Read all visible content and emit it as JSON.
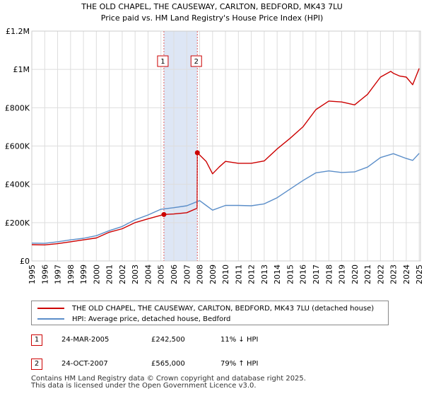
{
  "chart_data": {
    "type": "line",
    "title": "THE OLD CHAPEL, THE CAUSEWAY, CARLTON, BEDFORD, MK43 7LU",
    "subtitle": "Price paid vs. HM Land Registry's House Price Index (HPI)",
    "x_ticks": [
      "1995",
      "1996",
      "1997",
      "1998",
      "1999",
      "2000",
      "2001",
      "2002",
      "2003",
      "2004",
      "2005",
      "2006",
      "2007",
      "2008",
      "2009",
      "2010",
      "2011",
      "2012",
      "2013",
      "2014",
      "2015",
      "2016",
      "2017",
      "2018",
      "2019",
      "2020",
      "2021",
      "2022",
      "2023",
      "2024",
      "2025"
    ],
    "y_ticks": [
      "£0",
      "£200K",
      "£400K",
      "£600K",
      "£800K",
      "£1M",
      "£1.2M"
    ],
    "xlim": [
      1995,
      2025.1
    ],
    "ylim": [
      0,
      1200000
    ],
    "grid": true,
    "series": [
      {
        "name": "THE OLD CHAPEL, THE CAUSEWAY, CARLTON, BEDFORD, MK43 7LU (detached house)",
        "color": "#cc0000",
        "x": [
          1995,
          1996,
          1997,
          1998,
          1999,
          2000,
          2001,
          2002,
          2003,
          2004,
          2005.23,
          2006,
          2007,
          2007.8,
          2007.82,
          2008.5,
          2009,
          2009.5,
          2010,
          2011,
          2012,
          2013,
          2014,
          2015,
          2016,
          2017,
          2018,
          2019,
          2020,
          2021,
          2022,
          2022.8,
          2023,
          2023.5,
          2024,
          2024.5,
          2025
        ],
        "values": [
          85000,
          84000,
          90000,
          100000,
          110000,
          120000,
          150000,
          168000,
          200000,
          220000,
          242500,
          245000,
          252000,
          275000,
          565000,
          520000,
          455000,
          490000,
          520000,
          510000,
          510000,
          522000,
          585000,
          640000,
          700000,
          790000,
          835000,
          830000,
          815000,
          870000,
          960000,
          990000,
          980000,
          965000,
          960000,
          920000,
          1005000
        ]
      },
      {
        "name": "HPI: Average price, detached house, Bedford",
        "color": "#5b8ec9",
        "x": [
          1995,
          1996,
          1997,
          1998,
          1999,
          2000,
          2001,
          2002,
          2003,
          2004,
          2005,
          2006,
          2007,
          2008,
          2008.5,
          2009,
          2010,
          2011,
          2012,
          2013,
          2014,
          2015,
          2016,
          2017,
          2018,
          2019,
          2020,
          2021,
          2022,
          2023,
          2024,
          2024.5,
          2025
        ],
        "values": [
          93000,
          92000,
          100000,
          110000,
          118000,
          132000,
          158000,
          180000,
          215000,
          240000,
          270000,
          278000,
          288000,
          315000,
          290000,
          265000,
          290000,
          290000,
          288000,
          298000,
          330000,
          375000,
          420000,
          460000,
          470000,
          462000,
          465000,
          490000,
          540000,
          560000,
          535000,
          525000,
          562000
        ]
      }
    ],
    "sales": [
      {
        "label": "1",
        "date": "24-MAR-2005",
        "x": 2005.23,
        "price": 242500,
        "price_text": "£242,500",
        "hpi_text": "11% ↓ HPI"
      },
      {
        "label": "2",
        "date": "24-OCT-2007",
        "x": 2007.82,
        "price": 565000,
        "price_text": "£565,000",
        "hpi_text": "79% ↑ HPI"
      }
    ]
  },
  "legend": {
    "property_label": "THE OLD CHAPEL, THE CAUSEWAY, CARLTON, BEDFORD, MK43 7LU (detached house)",
    "hpi_label": "HPI: Average price, detached house, Bedford"
  },
  "footer": {
    "line1": "Contains HM Land Registry data © Crown copyright and database right 2025.",
    "line2": "This data is licensed under the Open Government Licence v3.0."
  },
  "colors": {
    "property": "#cc0000",
    "hpi": "#5b8ec9",
    "highlight": "#dde6f5",
    "grid": "#dddddd",
    "marker_border": "#cc0000"
  }
}
